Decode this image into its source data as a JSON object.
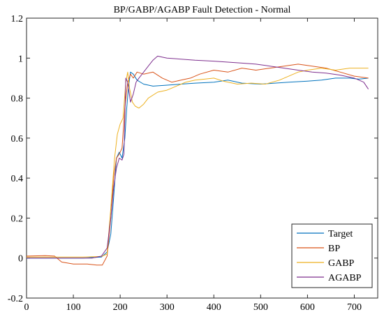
{
  "chart_data": {
    "type": "line",
    "title": "BP/GABP/AGABP Fault Detection - Normal",
    "xlabel": "",
    "ylabel": "",
    "xlim": [
      0,
      750
    ],
    "ylim": [
      -0.2,
      1.2
    ],
    "xticks": [
      0,
      100,
      200,
      300,
      400,
      500,
      600,
      700
    ],
    "yticks": [
      -0.2,
      0,
      0.2,
      0.4,
      0.6,
      0.8,
      1,
      1.2
    ],
    "xtick_labels": [
      "0",
      "100",
      "200",
      "300",
      "400",
      "500",
      "600",
      "700"
    ],
    "ytick_labels": [
      "-0.2",
      "0",
      "0.2",
      "0.4",
      "0.6",
      "0.8",
      "1",
      "1.2"
    ],
    "grid": false,
    "legend_position": "bottom-right",
    "series": [
      {
        "name": "Target",
        "color": "#0072BD",
        "points": [
          [
            0,
            0.0
          ],
          [
            60,
            0.0
          ],
          [
            120,
            0.0
          ],
          [
            160,
            0.005
          ],
          [
            172,
            0.03
          ],
          [
            180,
            0.12
          ],
          [
            186,
            0.3
          ],
          [
            192,
            0.5
          ],
          [
            198,
            0.53
          ],
          [
            204,
            0.5
          ],
          [
            210,
            0.6
          ],
          [
            214,
            0.75
          ],
          [
            218,
            0.86
          ],
          [
            222,
            0.93
          ],
          [
            228,
            0.92
          ],
          [
            236,
            0.89
          ],
          [
            250,
            0.87
          ],
          [
            270,
            0.86
          ],
          [
            300,
            0.865
          ],
          [
            330,
            0.87
          ],
          [
            360,
            0.875
          ],
          [
            400,
            0.88
          ],
          [
            430,
            0.89
          ],
          [
            460,
            0.875
          ],
          [
            500,
            0.87
          ],
          [
            530,
            0.875
          ],
          [
            560,
            0.88
          ],
          [
            600,
            0.885
          ],
          [
            630,
            0.89
          ],
          [
            660,
            0.9
          ],
          [
            690,
            0.9
          ],
          [
            710,
            0.895
          ],
          [
            730,
            0.9
          ]
        ]
      },
      {
        "name": "BP",
        "color": "#D95319",
        "points": [
          [
            0,
            0.01
          ],
          [
            40,
            0.012
          ],
          [
            60,
            0.01
          ],
          [
            75,
            -0.02
          ],
          [
            100,
            -0.03
          ],
          [
            130,
            -0.03
          ],
          [
            150,
            -0.035
          ],
          [
            162,
            -0.035
          ],
          [
            172,
            0.01
          ],
          [
            180,
            0.2
          ],
          [
            186,
            0.4
          ],
          [
            192,
            0.5
          ],
          [
            198,
            0.52
          ],
          [
            204,
            0.55
          ],
          [
            210,
            0.75
          ],
          [
            216,
            0.88
          ],
          [
            222,
            0.92
          ],
          [
            228,
            0.9
          ],
          [
            236,
            0.93
          ],
          [
            250,
            0.92
          ],
          [
            270,
            0.93
          ],
          [
            290,
            0.9
          ],
          [
            310,
            0.88
          ],
          [
            330,
            0.89
          ],
          [
            350,
            0.9
          ],
          [
            370,
            0.92
          ],
          [
            400,
            0.94
          ],
          [
            430,
            0.93
          ],
          [
            460,
            0.95
          ],
          [
            490,
            0.94
          ],
          [
            520,
            0.95
          ],
          [
            550,
            0.96
          ],
          [
            580,
            0.97
          ],
          [
            610,
            0.96
          ],
          [
            640,
            0.95
          ],
          [
            670,
            0.93
          ],
          [
            700,
            0.91
          ],
          [
            730,
            0.9
          ]
        ]
      },
      {
        "name": "GABP",
        "color": "#EDB120",
        "points": [
          [
            0,
            0.005
          ],
          [
            40,
            0.005
          ],
          [
            80,
            0.005
          ],
          [
            120,
            0.005
          ],
          [
            160,
            0.008
          ],
          [
            172,
            0.02
          ],
          [
            180,
            0.25
          ],
          [
            188,
            0.5
          ],
          [
            194,
            0.62
          ],
          [
            200,
            0.67
          ],
          [
            206,
            0.7
          ],
          [
            212,
            0.88
          ],
          [
            216,
            0.93
          ],
          [
            220,
            0.85
          ],
          [
            226,
            0.78
          ],
          [
            232,
            0.76
          ],
          [
            240,
            0.75
          ],
          [
            250,
            0.77
          ],
          [
            260,
            0.8
          ],
          [
            280,
            0.83
          ],
          [
            300,
            0.84
          ],
          [
            320,
            0.86
          ],
          [
            340,
            0.88
          ],
          [
            360,
            0.89
          ],
          [
            380,
            0.895
          ],
          [
            400,
            0.9
          ],
          [
            420,
            0.885
          ],
          [
            450,
            0.87
          ],
          [
            480,
            0.875
          ],
          [
            510,
            0.87
          ],
          [
            540,
            0.89
          ],
          [
            560,
            0.91
          ],
          [
            580,
            0.93
          ],
          [
            600,
            0.94
          ],
          [
            630,
            0.95
          ],
          [
            660,
            0.94
          ],
          [
            690,
            0.95
          ],
          [
            730,
            0.95
          ]
        ]
      },
      {
        "name": "AGABP",
        "color": "#7E2F8E",
        "points": [
          [
            0,
            0.0
          ],
          [
            60,
            0.0
          ],
          [
            100,
            0.0
          ],
          [
            140,
            0.0
          ],
          [
            160,
            0.01
          ],
          [
            172,
            0.05
          ],
          [
            180,
            0.2
          ],
          [
            186,
            0.35
          ],
          [
            192,
            0.45
          ],
          [
            198,
            0.5
          ],
          [
            204,
            0.49
          ],
          [
            208,
            0.52
          ],
          [
            212,
            0.9
          ],
          [
            216,
            0.88
          ],
          [
            222,
            0.78
          ],
          [
            228,
            0.82
          ],
          [
            234,
            0.88
          ],
          [
            240,
            0.9
          ],
          [
            250,
            0.93
          ],
          [
            260,
            0.96
          ],
          [
            270,
            0.99
          ],
          [
            280,
            1.01
          ],
          [
            290,
            1.005
          ],
          [
            300,
            1.0
          ],
          [
            330,
            0.995
          ],
          [
            360,
            0.99
          ],
          [
            400,
            0.985
          ],
          [
            430,
            0.98
          ],
          [
            460,
            0.975
          ],
          [
            490,
            0.97
          ],
          [
            520,
            0.96
          ],
          [
            550,
            0.95
          ],
          [
            580,
            0.94
          ],
          [
            610,
            0.93
          ],
          [
            640,
            0.925
          ],
          [
            670,
            0.915
          ],
          [
            700,
            0.9
          ],
          [
            720,
            0.88
          ],
          [
            730,
            0.845
          ]
        ]
      }
    ]
  }
}
